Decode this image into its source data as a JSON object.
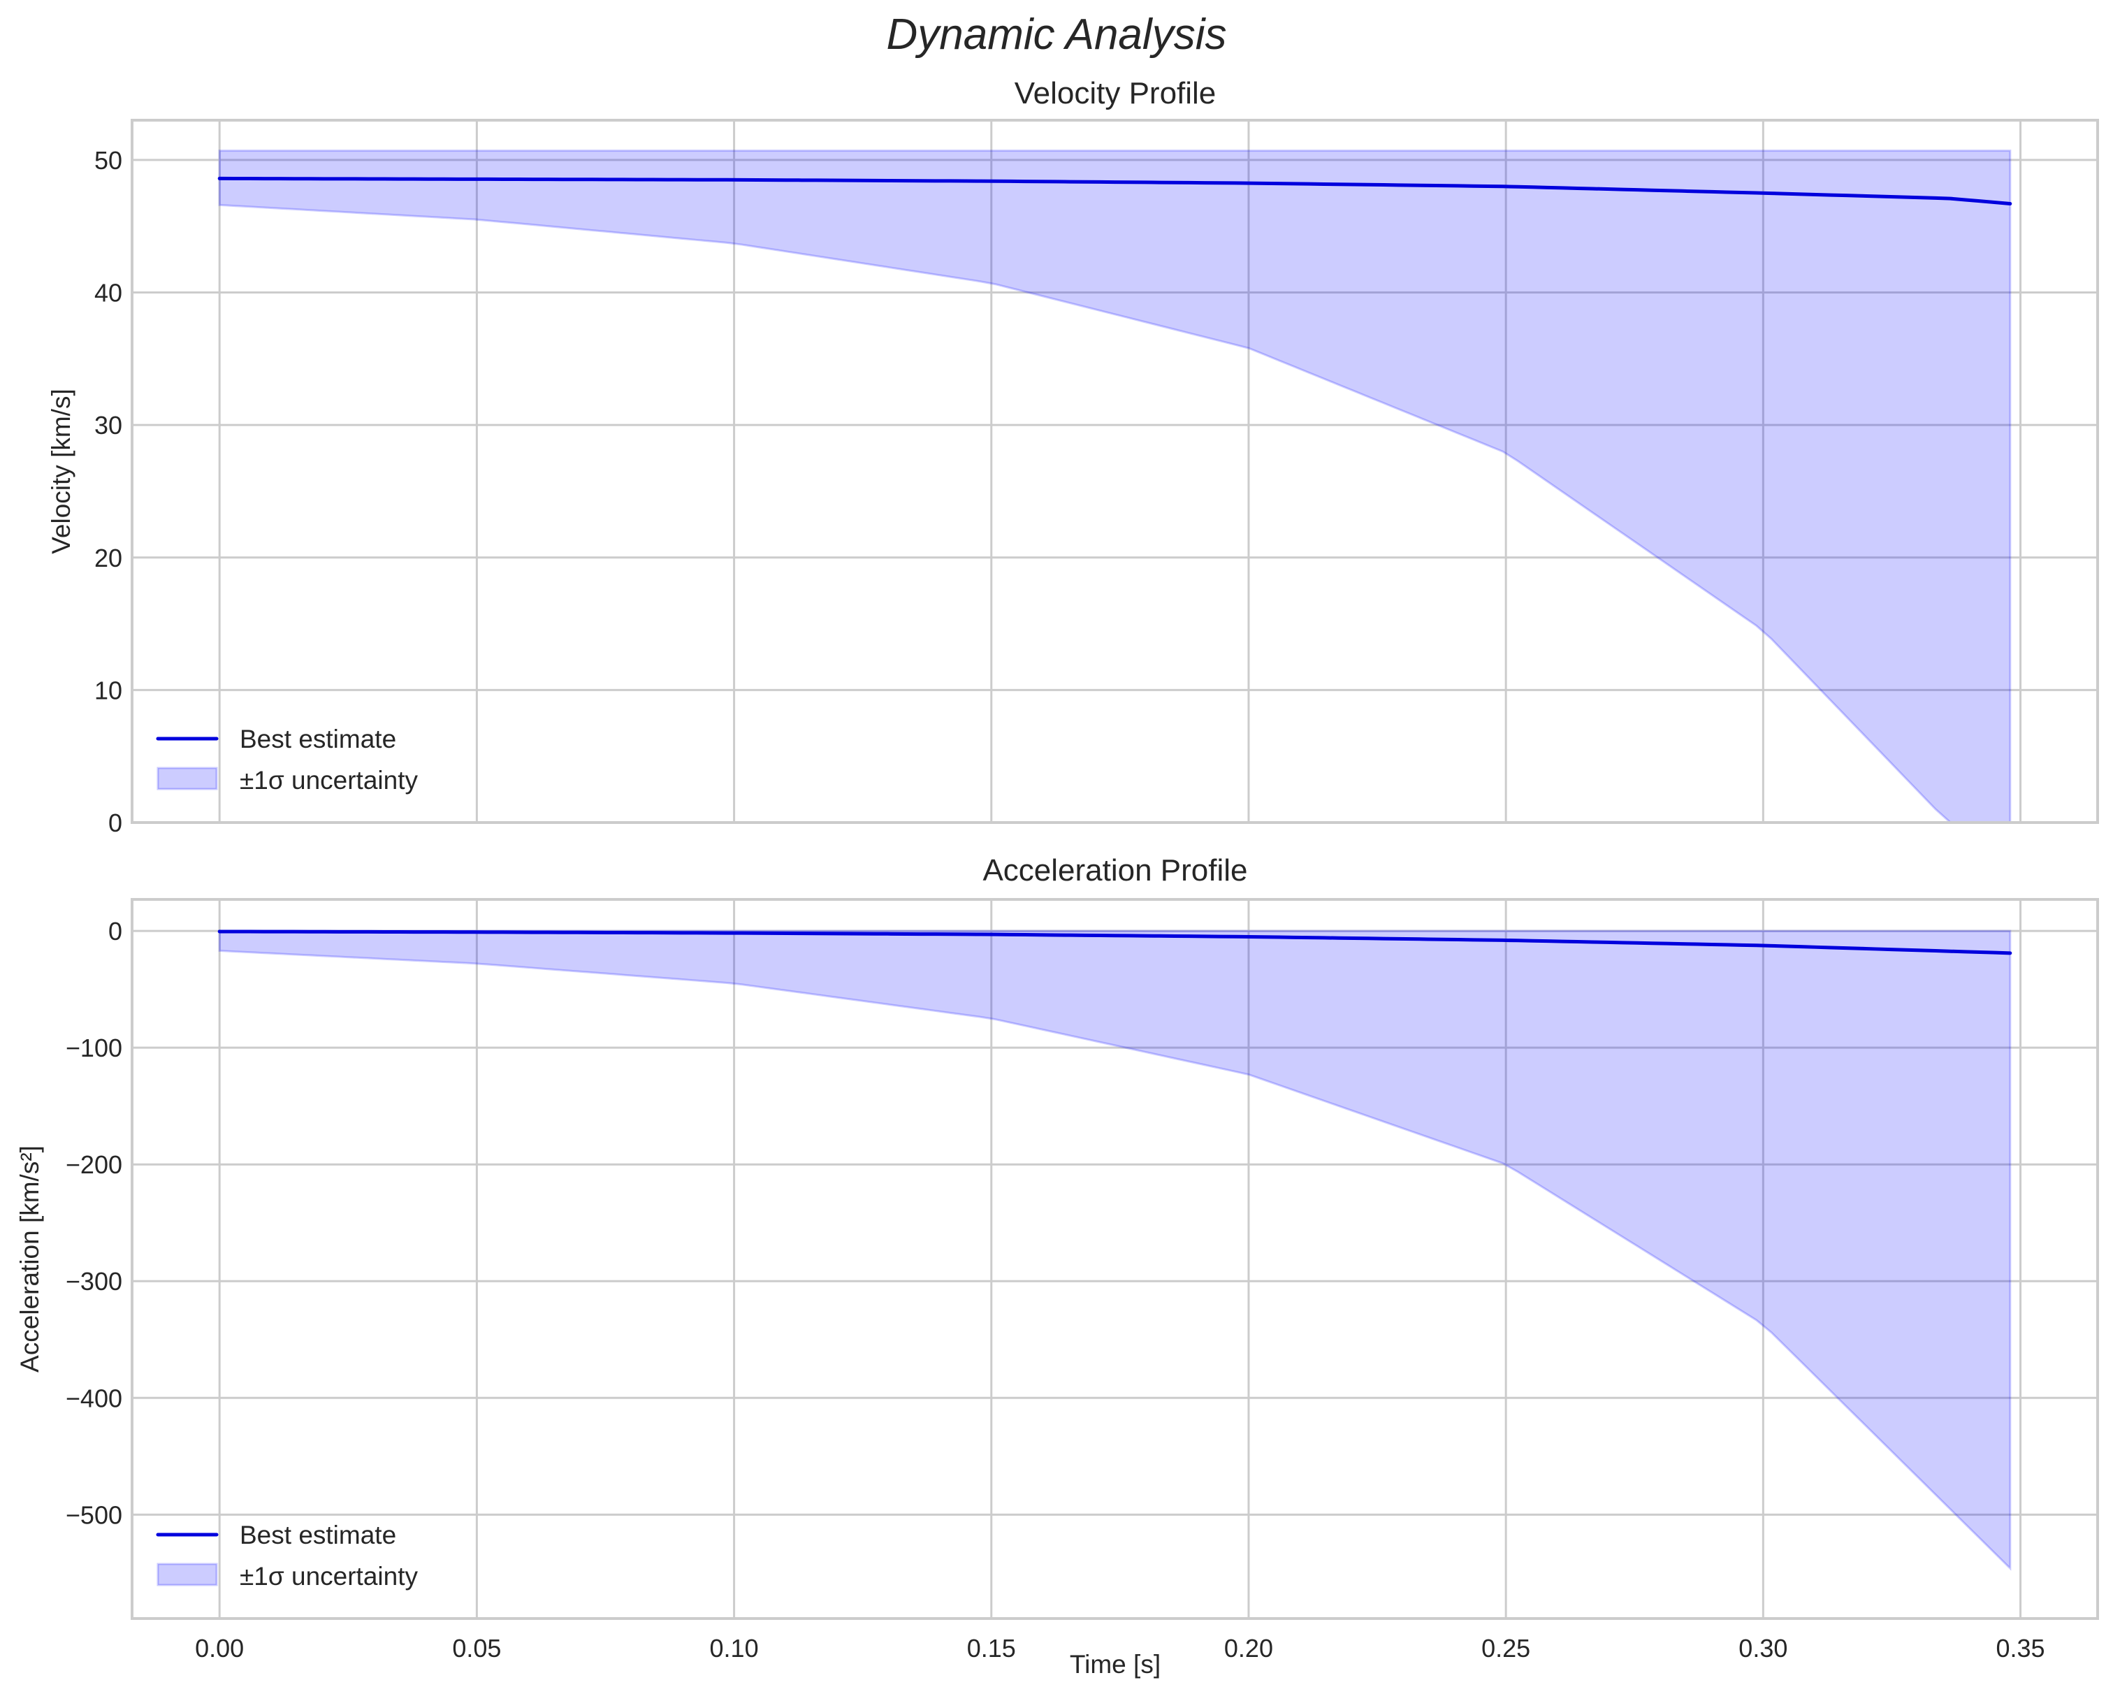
{
  "figure": {
    "title": "Dynamic Analysis"
  },
  "chart_data": [
    {
      "type": "line",
      "title": "Velocity Profile",
      "xlabel": "Time [s]",
      "ylabel": "Velocity [km/s]",
      "xlim": [
        -0.017,
        0.365
      ],
      "ylim": [
        0,
        53
      ],
      "grid": true,
      "legend_position": "lower left",
      "x_ticks": [
        "0.00",
        "0.05",
        "0.10",
        "0.15",
        "0.20",
        "0.25",
        "0.30",
        "0.35"
      ],
      "y_ticks": [
        "0",
        "10",
        "20",
        "30",
        "40",
        "50"
      ],
      "x": [
        0.0,
        0.05,
        0.1,
        0.15,
        0.2,
        0.25,
        0.3,
        0.336,
        0.348
      ],
      "series": [
        {
          "name": "Best estimate",
          "kind": "line",
          "color": "#0000dd",
          "values": [
            48.6,
            48.55,
            48.5,
            48.4,
            48.25,
            48.0,
            47.5,
            47.1,
            46.7
          ]
        },
        {
          "name": "±1σ uncertainty",
          "kind": "band",
          "color": "#ccccfa",
          "upper": [
            50.7,
            50.7,
            50.7,
            50.7,
            50.7,
            50.7,
            50.7,
            50.7,
            50.7
          ],
          "lower": [
            46.6,
            45.5,
            43.7,
            40.7,
            35.8,
            27.9,
            14.5,
            0.0,
            -6.0
          ]
        }
      ]
    },
    {
      "type": "line",
      "title": "Acceleration Profile",
      "xlabel": "Time [s]",
      "ylabel": "Acceleration [km/s²]",
      "xlim": [
        -0.017,
        0.365
      ],
      "ylim": [
        -589,
        27
      ],
      "grid": true,
      "legend_position": "lower left",
      "x_ticks": [
        "0.00",
        "0.05",
        "0.10",
        "0.15",
        "0.20",
        "0.25",
        "0.30",
        "0.35"
      ],
      "y_ticks": [
        "0",
        "−100",
        "−200",
        "−300",
        "−400",
        "−500"
      ],
      "x": [
        0.0,
        0.05,
        0.1,
        0.15,
        0.2,
        0.25,
        0.3,
        0.348
      ],
      "series": [
        {
          "name": "Best estimate",
          "kind": "line",
          "color": "#0000dd",
          "values": [
            -0.5,
            -1.0,
            -1.8,
            -3.0,
            -5.0,
            -8.0,
            -12.5,
            -19.0
          ]
        },
        {
          "name": "±1σ uncertainty",
          "kind": "band",
          "color": "#ccccfa",
          "upper": [
            0,
            0,
            0,
            0,
            0,
            0,
            0,
            0
          ],
          "lower": [
            -17,
            -28,
            -45,
            -75,
            -123,
            -200,
            -337,
            -546
          ]
        }
      ]
    }
  ],
  "legend": {
    "line_label": "Best estimate",
    "band_label": "±1σ uncertainty"
  }
}
